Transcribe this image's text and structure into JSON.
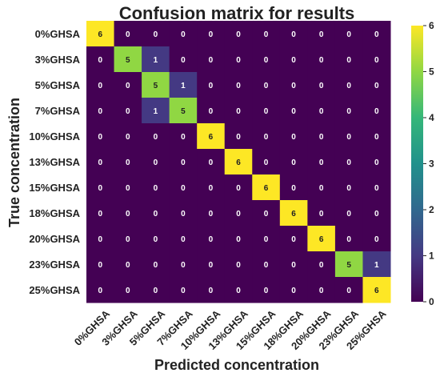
{
  "chart_data": {
    "type": "heatmap",
    "title": "Confusion matrix for results",
    "xlabel": "Predicted concentration",
    "ylabel": "True concentration",
    "x_categories": [
      "0%GHSA",
      "3%GHSA",
      "5%GHSA",
      "7%GHSA",
      "10%GHSA",
      "13%GHSA",
      "15%GHSA",
      "18%GHSA",
      "20%GHSA",
      "23%GHSA",
      "25%GHSA"
    ],
    "y_categories": [
      "0%GHSA",
      "3%GHSA",
      "5%GHSA",
      "7%GHSA",
      "10%GHSA",
      "13%GHSA",
      "15%GHSA",
      "18%GHSA",
      "20%GHSA",
      "23%GHSA",
      "25%GHSA"
    ],
    "values": [
      [
        6,
        0,
        0,
        0,
        0,
        0,
        0,
        0,
        0,
        0,
        0
      ],
      [
        0,
        5,
        1,
        0,
        0,
        0,
        0,
        0,
        0,
        0,
        0
      ],
      [
        0,
        0,
        5,
        1,
        0,
        0,
        0,
        0,
        0,
        0,
        0
      ],
      [
        0,
        0,
        1,
        5,
        0,
        0,
        0,
        0,
        0,
        0,
        0
      ],
      [
        0,
        0,
        0,
        0,
        6,
        0,
        0,
        0,
        0,
        0,
        0
      ],
      [
        0,
        0,
        0,
        0,
        0,
        6,
        0,
        0,
        0,
        0,
        0
      ],
      [
        0,
        0,
        0,
        0,
        0,
        0,
        6,
        0,
        0,
        0,
        0
      ],
      [
        0,
        0,
        0,
        0,
        0,
        0,
        0,
        6,
        0,
        0,
        0
      ],
      [
        0,
        0,
        0,
        0,
        0,
        0,
        0,
        0,
        6,
        0,
        0
      ],
      [
        0,
        0,
        0,
        0,
        0,
        0,
        0,
        0,
        0,
        5,
        1
      ],
      [
        0,
        0,
        0,
        0,
        0,
        0,
        0,
        0,
        0,
        0,
        6
      ]
    ],
    "colorbar": {
      "min": 0,
      "max": 6,
      "ticks": [
        0,
        1,
        2,
        3,
        4,
        5,
        6
      ],
      "colormap": "viridis"
    }
  }
}
